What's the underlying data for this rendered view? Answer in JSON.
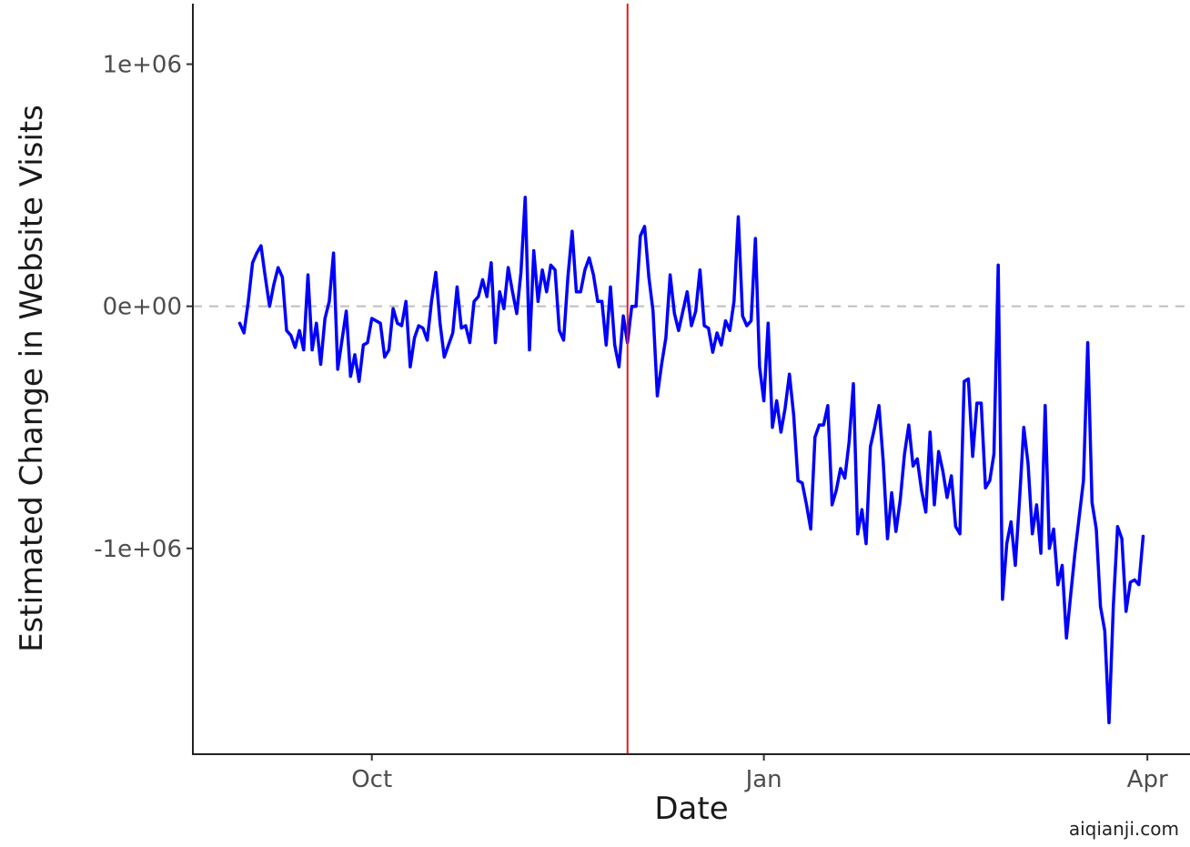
{
  "chart_data": {
    "type": "line",
    "xlabel": "Date",
    "ylabel": "Estimated Change in Website Visits",
    "x_ticks": [
      {
        "date": "2018-10-01",
        "label": "Oct"
      },
      {
        "date": "2019-01-01",
        "label": "Jan"
      },
      {
        "date": "2019-04-01",
        "label": "Apr"
      }
    ],
    "y_ticks": [
      {
        "value": 1000000,
        "label": "1e+06"
      },
      {
        "value": 0,
        "label": "0e+00"
      },
      {
        "value": -1000000,
        "label": "-1e+06"
      }
    ],
    "xlim": [
      "2018-08-20",
      "2019-04-11"
    ],
    "ylim": [
      -1850000,
      1250000
    ],
    "grid": false,
    "legend": "none",
    "reference_hline": {
      "value": 0,
      "style": "dashed",
      "color": "#bdbdbd"
    },
    "reference_vline": {
      "date": "2018-11-30",
      "color": "#e31a1c"
    },
    "series": [
      {
        "color": "#0000ff",
        "x_start": "2018-08-31",
        "interval_days": 1,
        "y": [
          -70000,
          -110000,
          20000,
          180000,
          220000,
          250000,
          120000,
          0,
          90000,
          160000,
          120000,
          -100000,
          -120000,
          -170000,
          -100000,
          -180000,
          130000,
          -180000,
          -70000,
          -240000,
          -50000,
          20000,
          220000,
          -260000,
          -140000,
          -20000,
          -290000,
          -200000,
          -310000,
          -160000,
          -150000,
          -50000,
          -60000,
          -70000,
          -210000,
          -180000,
          -10000,
          -70000,
          -80000,
          20000,
          -250000,
          -130000,
          -80000,
          -90000,
          -140000,
          20000,
          140000,
          -70000,
          -210000,
          -160000,
          -110000,
          80000,
          -90000,
          -80000,
          -150000,
          20000,
          40000,
          110000,
          40000,
          180000,
          -150000,
          60000,
          -10000,
          160000,
          60000,
          -30000,
          140000,
          450000,
          -180000,
          230000,
          20000,
          150000,
          60000,
          170000,
          150000,
          -100000,
          -140000,
          120000,
          310000,
          60000,
          60000,
          150000,
          200000,
          130000,
          20000,
          20000,
          -160000,
          80000,
          -160000,
          -250000,
          -40000,
          -150000,
          0,
          0,
          290000,
          330000,
          120000,
          -20000,
          -370000,
          -240000,
          -130000,
          130000,
          -30000,
          -100000,
          -20000,
          60000,
          -80000,
          -20000,
          150000,
          -80000,
          -90000,
          -190000,
          -110000,
          -160000,
          -60000,
          -100000,
          20000,
          370000,
          -40000,
          -80000,
          -60000,
          280000,
          -250000,
          -390000,
          -70000,
          -500000,
          -390000,
          -520000,
          -420000,
          -280000,
          -450000,
          -720000,
          -730000,
          -820000,
          -920000,
          -540000,
          -490000,
          -490000,
          -410000,
          -820000,
          -760000,
          -670000,
          -710000,
          -560000,
          -320000,
          -940000,
          -840000,
          -980000,
          -580000,
          -500000,
          -410000,
          -640000,
          -960000,
          -770000,
          -930000,
          -800000,
          -610000,
          -490000,
          -660000,
          -630000,
          -760000,
          -850000,
          -520000,
          -820000,
          -600000,
          -680000,
          -790000,
          -700000,
          -910000,
          -940000,
          -310000,
          -300000,
          -620000,
          -400000,
          -400000,
          -750000,
          -720000,
          -610000,
          170000,
          -1210000,
          -980000,
          -890000,
          -1070000,
          -800000,
          -500000,
          -650000,
          -940000,
          -820000,
          -1020000,
          -410000,
          -1000000,
          -920000,
          -1150000,
          -1070000,
          -1370000,
          -1190000,
          -1020000,
          -870000,
          -720000,
          -150000,
          -810000,
          -920000,
          -1240000,
          -1340000,
          -1720000,
          -1240000,
          -910000,
          -960000,
          -1260000,
          -1140000,
          -1130000,
          -1150000,
          -950000
        ]
      }
    ]
  },
  "watermark": "aiqianji.com"
}
